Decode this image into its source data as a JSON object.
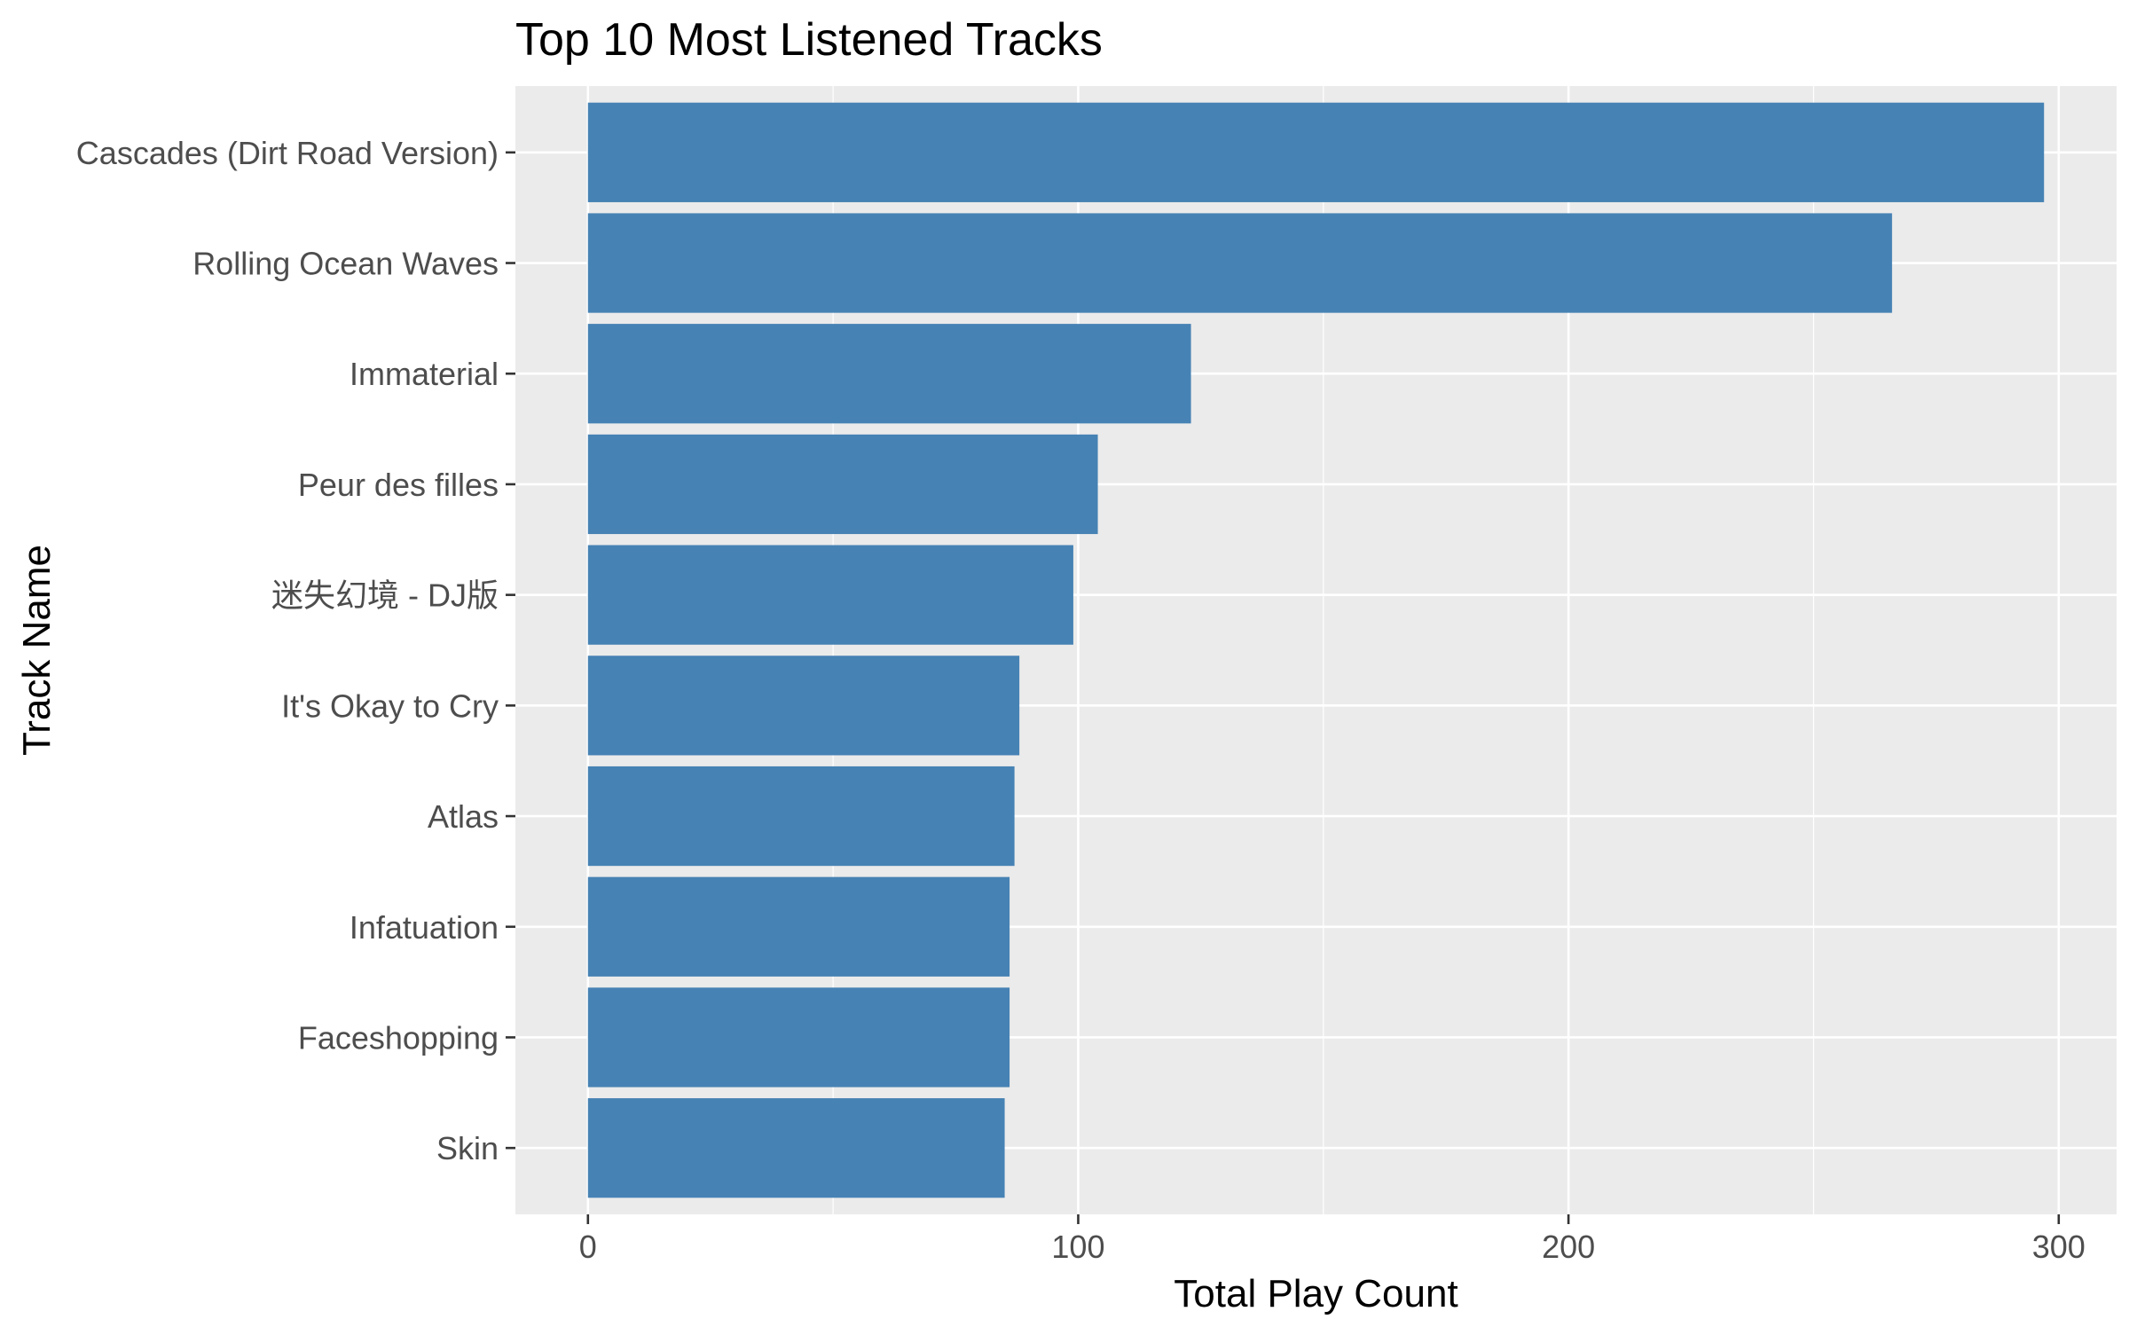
{
  "chart_data": {
    "type": "bar",
    "orientation": "horizontal",
    "title": "Top 10 Most Listened Tracks",
    "xlabel": "Total Play Count",
    "ylabel": "Track Name",
    "categories": [
      "Cascades (Dirt Road Version)",
      "Rolling Ocean Waves",
      "Immaterial",
      "Peur des filles",
      "迷失幻境 - DJ版",
      "It's Okay to Cry",
      "Atlas",
      "Infatuation",
      "Faceshopping",
      "Skin"
    ],
    "values": [
      297,
      266,
      123,
      104,
      99,
      88,
      87,
      86,
      86,
      85
    ],
    "xlim": [
      -14.8,
      311.8
    ],
    "x_ticks": [
      0,
      100,
      200,
      300
    ],
    "x_tick_labels": [
      "0",
      "100",
      "200",
      "300"
    ],
    "grid": true,
    "legend": "none",
    "colors": {
      "bar": "#4682B4",
      "panel_background": "#EBEBEB",
      "gridline": "#FFFFFF",
      "tick_label": "#4D4D4D",
      "tick_mark": "#333333"
    }
  }
}
